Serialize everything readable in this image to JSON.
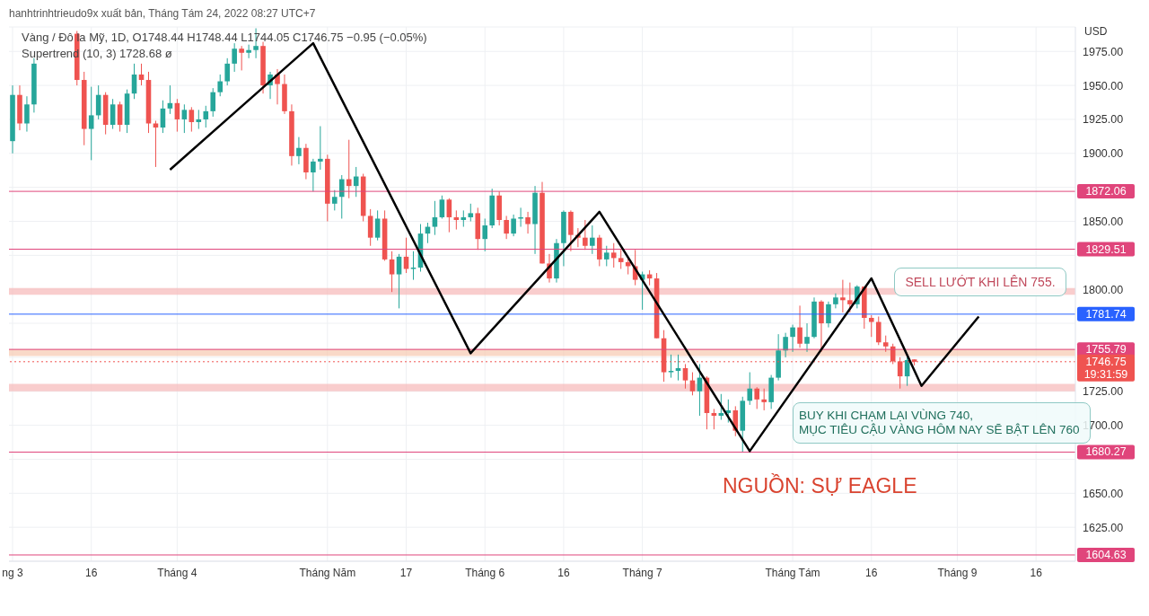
{
  "chart_data": {
    "type": "candlestick",
    "title": "Vàng / Đô la Mỹ, 1D, O1748.44 H1748.44 L1744.05 C1746.75 −0.95 (−0.05%)",
    "subtitle": "Supertrend (10, 3) 1728.68 ø",
    "ylabel": "USD",
    "annotations": [
      "hanhtrinhtrieudo9x xuất bản, Tháng Tám 24, 2022 08:27 UTC+7",
      "SELL LƯỚT KHI LÊN 755.",
      "BUY KHI CHẠM LẠI VÙNG 740,\nMỤC TIÊU CẬU VÀNG HÔM NAY SẼ BẬT LÊN 760",
      "NGUỒN: SỰ EAGLE"
    ],
    "categories": [
      "ng 3",
      null,
      null,
      null,
      null,
      null,
      null,
      null,
      null,
      null,
      null,
      "16",
      null,
      null,
      null,
      null,
      null,
      null,
      null,
      null,
      null,
      null,
      null,
      "Tháng 4",
      null,
      null,
      null,
      null,
      null,
      null,
      null,
      null,
      null,
      null,
      null,
      null,
      null,
      null,
      null,
      null,
      null,
      null,
      null,
      null,
      "Tháng Năm",
      null,
      null,
      null,
      null,
      null,
      null,
      null,
      null,
      null,
      null,
      "17",
      null,
      null,
      null,
      null,
      null,
      null,
      null,
      null,
      null,
      null,
      "Tháng 6",
      null,
      null,
      null,
      null,
      null,
      null,
      null,
      null,
      null,
      null,
      "16",
      null,
      null,
      null,
      null,
      null,
      null,
      null,
      null,
      null,
      null,
      "Tháng 7",
      null,
      null,
      null,
      null,
      null,
      null,
      null,
      null,
      null,
      null,
      null,
      null,
      null,
      null,
      null,
      null,
      null,
      null,
      null,
      null,
      "Tháng Tám",
      null,
      null,
      null,
      null,
      null,
      null,
      null,
      null,
      null,
      null,
      "16",
      null,
      null,
      null,
      null,
      null,
      null,
      null,
      null,
      null,
      null,
      null,
      "Tháng 9",
      null,
      null,
      null,
      null,
      null,
      null,
      null,
      null,
      null,
      null,
      "16",
      null,
      null,
      null,
      null,
      null
    ],
    "colors": [
      "#26a69a",
      "#ef5350",
      "#26a69a",
      "#26a69a",
      null,
      null,
      null,
      null,
      null,
      "#ef5350",
      "#ef5350",
      "#26a69a",
      "#26a69a",
      "#ef5350",
      "#26a69a",
      "#ef5350",
      "#26a69a",
      "#26a69a",
      "#ef5350",
      "#ef5350",
      "#ef5350",
      "#26a69a",
      "#26a69a",
      "#ef5350",
      "#26a69a",
      "#ef5350",
      "#26a69a",
      "#26a69a",
      "#26a69a",
      "#26a69a",
      "#26a69a",
      "#26a69a",
      "#ef5350",
      "#26a69a",
      "#26a69a",
      "#ef5350",
      "#26a69a",
      "#ef5350",
      "#ef5350",
      "#ef5350",
      "#26a69a",
      "#ef5350",
      "#26a69a",
      "#26a69a",
      "#ef5350",
      "#26a69a",
      "#26a69a",
      "#ef5350",
      "#26a69a",
      "#ef5350",
      "#ef5350",
      "#26a69a",
      "#ef5350",
      "#ef5350",
      "#26a69a",
      "#ef5350",
      "#26a69a",
      "#26a69a",
      "#26a69a",
      "#26a69a",
      "#26a69a",
      "#ef5350",
      "#ef5350",
      "#26a69a",
      "#26a69a",
      "#ef5350",
      "#26a69a",
      "#26a69a",
      "#ef5350",
      "#ef5350",
      "#26a69a",
      "#26a69a",
      "#ef5350",
      "#26a69a",
      "#ef5350",
      "#ef5350",
      "#26a69a",
      "#26a69a",
      "#ef5350",
      "#ef5350",
      "#ef5350",
      "#26a69a",
      "#ef5350",
      "#26a69a",
      "#ef5350",
      "#ef5350",
      "#ef5350",
      "#ef5350",
      "#26a69a",
      "#ef5350",
      "#ef5350",
      "#ef5350",
      "#26a69a",
      "#26a69a",
      "#ef5350",
      "#ef5350",
      "#26a69a",
      "#ef5350",
      "#ef5350",
      "#26a69a",
      "#26a69a",
      "#ef5350",
      "#26a69a",
      "#26a69a",
      "#ef5350",
      "#ef5350",
      "#26a69a",
      "#26a69a",
      "#26a69a",
      "#26a69a",
      "#ef5350",
      "#26a69a",
      "#26a69a",
      "#ef5350",
      "#26a69a",
      "#26a69a",
      "#ef5350",
      "#ef5350",
      "#26a69a",
      "#ef5350",
      "#ef5350",
      "#ef5350",
      "#ef5350",
      "#ef5350",
      "#ef5350",
      "#26a69a",
      "#ef5350",
      null,
      null,
      null,
      null,
      null,
      null,
      null,
      null,
      null,
      null,
      null,
      null,
      null,
      null,
      null,
      null,
      null,
      null,
      null,
      null,
      null,
      null
    ],
    "ohlc": [
      [
        1909,
        1950,
        1900,
        1943
      ],
      [
        1943,
        1950,
        1917,
        1922
      ],
      [
        1922,
        1942,
        1916,
        1936
      ],
      [
        1936,
        1970,
        1930,
        1966
      ],
      null,
      null,
      null,
      null,
      null,
      [
        1988,
        1990,
        1950,
        1954
      ],
      [
        1954,
        1960,
        1906,
        1918
      ],
      [
        1918,
        1949,
        1895,
        1928
      ],
      [
        1928,
        1950,
        1925,
        1943
      ],
      [
        1943,
        1945,
        1914,
        1921
      ],
      [
        1921,
        1940,
        1918,
        1936
      ],
      [
        1936,
        1938,
        1916,
        1921
      ],
      [
        1921,
        1947,
        1915,
        1944
      ],
      [
        1944,
        1966,
        1940,
        1958
      ],
      [
        1958,
        1966,
        1950,
        1954
      ],
      [
        1954,
        1960,
        1915,
        1922
      ],
      [
        1922,
        1924,
        1890,
        1919
      ],
      [
        1919,
        1939,
        1915,
        1933
      ],
      [
        1933,
        1950,
        1929,
        1937
      ],
      [
        1937,
        1940,
        1916,
        1925
      ],
      [
        1925,
        1936,
        1915,
        1932
      ],
      [
        1932,
        1934,
        1916,
        1923
      ],
      [
        1923,
        1932,
        1918,
        1925
      ],
      [
        1925,
        1935,
        1919,
        1931
      ],
      [
        1931,
        1948,
        1927,
        1945
      ],
      [
        1945,
        1958,
        1942,
        1953
      ],
      [
        1953,
        1970,
        1950,
        1966
      ],
      [
        1966,
        1981,
        1960,
        1977
      ],
      [
        1977,
        1979,
        1961,
        1974
      ],
      [
        1974,
        1980,
        1970,
        1976
      ],
      [
        1976,
        1992,
        1970,
        1979
      ],
      [
        1979,
        1982,
        1944,
        1950
      ],
      [
        1950,
        1960,
        1940,
        1958
      ],
      [
        1958,
        1962,
        1936,
        1951
      ],
      [
        1951,
        1958,
        1929,
        1931
      ],
      [
        1931,
        1936,
        1891,
        1898
      ],
      [
        1898,
        1912,
        1892,
        1904
      ],
      [
        1904,
        1907,
        1881,
        1886
      ],
      [
        1886,
        1896,
        1872,
        1894
      ],
      [
        1894,
        1920,
        1888,
        1896
      ],
      [
        1896,
        1899,
        1850,
        1863
      ],
      [
        1863,
        1873,
        1858,
        1868
      ],
      [
        1868,
        1884,
        1852,
        1881
      ],
      [
        1881,
        1910,
        1867,
        1876
      ],
      [
        1876,
        1890,
        1868,
        1883
      ],
      [
        1883,
        1885,
        1850,
        1854
      ],
      [
        1854,
        1859,
        1832,
        1838
      ],
      [
        1838,
        1858,
        1836,
        1852
      ],
      [
        1852,
        1858,
        1821,
        1822
      ],
      [
        1822,
        1828,
        1798,
        1811
      ],
      [
        1811,
        1826,
        1786,
        1824
      ],
      [
        1824,
        1838,
        1812,
        1815
      ],
      [
        1815,
        1828,
        1807,
        1816
      ],
      [
        1816,
        1848,
        1813,
        1841
      ],
      [
        1841,
        1849,
        1834,
        1846
      ],
      [
        1846,
        1865,
        1840,
        1853
      ],
      [
        1853,
        1869,
        1852,
        1866
      ],
      [
        1866,
        1867,
        1842,
        1853
      ],
      [
        1853,
        1858,
        1844,
        1851
      ],
      [
        1851,
        1858,
        1846,
        1853
      ],
      [
        1853,
        1863,
        1850,
        1856
      ],
      [
        1856,
        1860,
        1829,
        1837
      ],
      [
        1837,
        1852,
        1828,
        1847
      ],
      [
        1847,
        1874,
        1845,
        1869
      ],
      [
        1869,
        1872,
        1847,
        1851
      ],
      [
        1851,
        1854,
        1837,
        1841
      ],
      [
        1841,
        1855,
        1839,
        1852
      ],
      [
        1852,
        1860,
        1846,
        1853
      ],
      [
        1853,
        1857,
        1841,
        1848
      ],
      [
        1848,
        1876,
        1826,
        1871
      ],
      [
        1871,
        1879,
        1819,
        1819
      ],
      [
        1819,
        1826,
        1805,
        1808
      ],
      [
        1808,
        1837,
        1805,
        1834
      ],
      [
        1834,
        1858,
        1817,
        1857
      ],
      [
        1857,
        1858,
        1828,
        1840
      ],
      [
        1840,
        1845,
        1831,
        1838
      ],
      [
        1838,
        1851,
        1829,
        1832
      ],
      [
        1832,
        1847,
        1826,
        1838
      ],
      [
        1838,
        1840,
        1817,
        1822
      ],
      [
        1822,
        1832,
        1817,
        1827
      ],
      [
        1827,
        1834,
        1816,
        1823
      ],
      [
        1823,
        1829,
        1815,
        1820
      ],
      [
        1820,
        1823,
        1811,
        1817
      ],
      [
        1817,
        1829,
        1803,
        1807
      ],
      [
        1807,
        1813,
        1785,
        1811
      ],
      [
        1811,
        1814,
        1803,
        1808
      ],
      [
        1808,
        1812,
        1764,
        1764
      ],
      [
        1764,
        1770,
        1732,
        1739
      ],
      [
        1739,
        1752,
        1735,
        1740
      ],
      [
        1740,
        1752,
        1733,
        1742
      ],
      [
        1742,
        1745,
        1727,
        1733
      ],
      [
        1733,
        1739,
        1722,
        1725
      ],
      [
        1725,
        1745,
        1707,
        1735
      ],
      [
        1735,
        1736,
        1697,
        1709
      ],
      [
        1709,
        1712,
        1697,
        1707
      ],
      [
        1707,
        1723,
        1704,
        1709
      ],
      [
        1709,
        1719,
        1702,
        1711
      ],
      [
        1711,
        1714,
        1692,
        1696
      ],
      [
        1696,
        1721,
        1680,
        1718
      ],
      [
        1718,
        1739,
        1715,
        1727
      ],
      [
        1727,
        1728,
        1712,
        1719
      ],
      [
        1719,
        1727,
        1711,
        1717
      ],
      [
        1717,
        1737,
        1712,
        1735
      ],
      [
        1735,
        1767,
        1733,
        1755
      ],
      [
        1755,
        1768,
        1750,
        1765
      ],
      [
        1765,
        1774,
        1754,
        1772
      ],
      [
        1772,
        1788,
        1757,
        1760
      ],
      [
        1760,
        1775,
        1754,
        1765
      ],
      [
        1765,
        1794,
        1764,
        1791
      ],
      [
        1791,
        1792,
        1754,
        1775
      ],
      [
        1775,
        1791,
        1772,
        1789
      ],
      [
        1789,
        1797,
        1786,
        1794
      ],
      [
        1794,
        1807,
        1783,
        1792
      ],
      [
        1792,
        1805,
        1783,
        1789
      ],
      [
        1789,
        1803,
        1786,
        1802
      ],
      [
        1802,
        1802,
        1771,
        1779
      ],
      [
        1779,
        1781,
        1765,
        1776
      ],
      [
        1776,
        1780,
        1759,
        1761
      ],
      [
        1761,
        1766,
        1754,
        1758
      ],
      [
        1758,
        1760,
        1745,
        1747
      ],
      [
        1747,
        1750,
        1727,
        1736
      ],
      [
        1736,
        1750,
        1729,
        1748
      ],
      [
        1748.44,
        1748.44,
        1744.05,
        1746.75
      ],
      null,
      null,
      null,
      null,
      null,
      null,
      null,
      null,
      null,
      null,
      null,
      null,
      null,
      null,
      null,
      null,
      null,
      null,
      null,
      null,
      null,
      null
    ],
    "series": [
      {
        "type": "line",
        "color": "#000000",
        "values": [
          null,
          null,
          null,
          null,
          null,
          null,
          null,
          null,
          null,
          null,
          null,
          null,
          null,
          null,
          null,
          null,
          null,
          null,
          null,
          null,
          null,
          null,
          1888,
          null,
          null,
          null,
          null,
          null,
          null,
          null,
          null,
          null,
          null,
          null,
          null,
          null,
          null,
          null,
          null,
          null,
          null,
          null,
          1981,
          null,
          null,
          null,
          null,
          null,
          null,
          null,
          null,
          null,
          null,
          null,
          null,
          null,
          null,
          null,
          null,
          null,
          null,
          null,
          null,
          null,
          1753,
          null,
          null,
          null,
          null,
          null,
          null,
          null,
          null,
          null,
          null,
          null,
          null,
          null,
          null,
          null,
          null,
          null,
          1857,
          null,
          null,
          null,
          null,
          null,
          null,
          null,
          null,
          null,
          null,
          null,
          null,
          null,
          null,
          null,
          null,
          null,
          null,
          null,
          null,
          1681,
          null,
          null,
          null,
          null,
          null,
          null,
          null,
          null,
          null,
          null,
          null,
          null,
          null,
          null,
          null,
          null,
          1808,
          null,
          null,
          null,
          null,
          null,
          null,
          1729,
          null,
          null,
          null,
          null,
          null,
          null,
          null,
          1780,
          null,
          null,
          null,
          null,
          null,
          null,
          null,
          null,
          null,
          null,
          null,
          null,
          null
        ]
      }
    ],
    "ylim": [
      1600,
      1993
    ],
    "yticks": [
      {
        "value": 1625,
        "label": "1625.00"
      },
      {
        "value": 1650,
        "label": "1650.00"
      },
      {
        "value": 1675,
        "label": null
      },
      {
        "value": 1700,
        "label": "1700.00"
      },
      {
        "value": 1725,
        "label": "1725.00"
      },
      {
        "value": 1750,
        "label": null
      },
      {
        "value": 1775,
        "label": null
      },
      {
        "value": 1800,
        "label": "1800.00"
      },
      {
        "value": 1825,
        "label": null
      },
      {
        "value": 1850,
        "label": "1850.00"
      },
      {
        "value": 1875,
        "label": null
      },
      {
        "value": 1900,
        "label": "1900.00"
      },
      {
        "value": 1925,
        "label": "1925.00"
      },
      {
        "value": 1950,
        "label": "1950.00"
      },
      {
        "value": 1975,
        "label": "1975.00"
      }
    ],
    "grid": true,
    "marker": "none",
    "ref_lines": [
      {
        "axis": "y",
        "value": 1872.06,
        "label": "1872.06",
        "color": "#e0457b"
      },
      {
        "axis": "y",
        "value": 1829.51,
        "label": "1829.51",
        "color": "#e0457b"
      },
      {
        "axis": "y",
        "value": 1781.74,
        "label": "1781.74",
        "color": "#2962ff"
      },
      {
        "axis": "y",
        "value": 1755.79,
        "label": "1755.79",
        "color": "#e0457b"
      },
      {
        "axis": "y",
        "value": 1746.75,
        "label": "1746.75\n19:31:59",
        "color": "#ef5350",
        "line_style": "dotted"
      },
      {
        "axis": "y",
        "value": 1680.27,
        "label": "1680.27",
        "color": "#e0457b"
      },
      {
        "axis": "y",
        "value": 1604.63,
        "label": "1604.63",
        "color": "#e0457b"
      }
    ],
    "bands": [
      {
        "axis": "y",
        "from": 1725,
        "to": 1730.5,
        "color": "#f6b8b8"
      },
      {
        "axis": "y",
        "from": 1796,
        "to": 1801,
        "color": "#f6b8b8"
      },
      {
        "axis": "y",
        "from": 1751,
        "to": 1756,
        "color": "#f6c9b0"
      }
    ]
  }
}
